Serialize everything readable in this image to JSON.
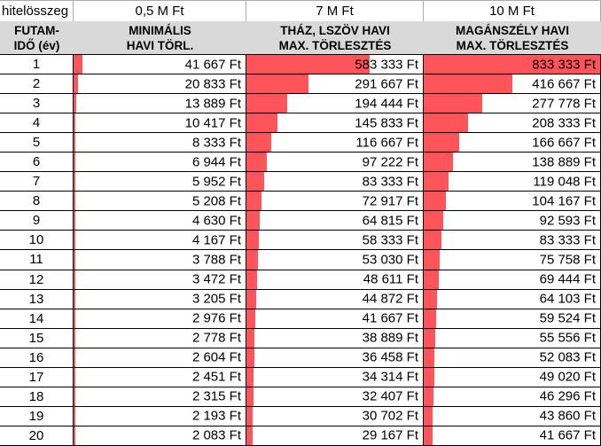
{
  "colors": {
    "bar": "#FF545A",
    "header_bg": "#D9D9D9",
    "grid_dark": "#000000",
    "grid_light": "#ABABAB"
  },
  "title_row": {
    "loan_label": "hitelösszeg",
    "amounts": [
      "0,5 M Ft",
      "7 M Ft",
      "10 M Ft"
    ]
  },
  "header_row": {
    "term": [
      "FUTAM-",
      "IDŐ (év)"
    ],
    "min_payment": [
      "MINIMÁLIS",
      "HAVI TÖRL."
    ],
    "thaz": [
      "THÁZ, LSZÖV HAVI",
      "MAX. TÖRLESZTÉS"
    ],
    "maganszely": [
      "MAGÁNSZÉLY HAVI",
      "MAX. TÖRLESZTÉS"
    ]
  },
  "rows": [
    {
      "year": "1",
      "min": "41 667 Ft",
      "thaz": "583 333 Ft",
      "magan": "833 333 Ft"
    },
    {
      "year": "2",
      "min": "20 833 Ft",
      "thaz": "291 667 Ft",
      "magan": "416 667 Ft"
    },
    {
      "year": "3",
      "min": "13 889 Ft",
      "thaz": "194 444 Ft",
      "magan": "277 778 Ft"
    },
    {
      "year": "4",
      "min": "10 417 Ft",
      "thaz": "145 833 Ft",
      "magan": "208 333 Ft"
    },
    {
      "year": "5",
      "min": "8 333 Ft",
      "thaz": "116 667 Ft",
      "magan": "166 667 Ft"
    },
    {
      "year": "6",
      "min": "6 944 Ft",
      "thaz": "97 222 Ft",
      "magan": "138 889 Ft"
    },
    {
      "year": "7",
      "min": "5 952 Ft",
      "thaz": "83 333 Ft",
      "magan": "119 048 Ft"
    },
    {
      "year": "8",
      "min": "5 208 Ft",
      "thaz": "72 917 Ft",
      "magan": "104 167 Ft"
    },
    {
      "year": "9",
      "min": "4 630 Ft",
      "thaz": "64 815 Ft",
      "magan": "92 593 Ft"
    },
    {
      "year": "10",
      "min": "4 167 Ft",
      "thaz": "58 333 Ft",
      "magan": "83 333 Ft"
    },
    {
      "year": "11",
      "min": "3 788 Ft",
      "thaz": "53 030 Ft",
      "magan": "75 758 Ft"
    },
    {
      "year": "12",
      "min": "3 472 Ft",
      "thaz": "48 611 Ft",
      "magan": "69 444 Ft"
    },
    {
      "year": "13",
      "min": "3 205 Ft",
      "thaz": "44 872 Ft",
      "magan": "64 103 Ft"
    },
    {
      "year": "14",
      "min": "2 976 Ft",
      "thaz": "41 667 Ft",
      "magan": "59 524 Ft"
    },
    {
      "year": "15",
      "min": "2 778 Ft",
      "thaz": "38 889 Ft",
      "magan": "55 556 Ft"
    },
    {
      "year": "16",
      "min": "2 604 Ft",
      "thaz": "36 458 Ft",
      "magan": "52 083 Ft"
    },
    {
      "year": "17",
      "min": "2 451 Ft",
      "thaz": "34 314 Ft",
      "magan": "49 020 Ft"
    },
    {
      "year": "18",
      "min": "2 315 Ft",
      "thaz": "32 407 Ft",
      "magan": "46 296 Ft"
    },
    {
      "year": "19",
      "min": "2 193 Ft",
      "thaz": "30 702 Ft",
      "magan": "43 860 Ft"
    },
    {
      "year": "20",
      "min": "2 083 Ft",
      "thaz": "29 167 Ft",
      "magan": "41 667 Ft"
    }
  ],
  "chart_data": {
    "type": "table",
    "title": "hitelösszeg / havi törlesztés",
    "xlabel": "FUTAM-IDŐ (év)",
    "unit": "Ft",
    "bar_scale_max": 833333,
    "bar_style": "in-cell data bars, left-aligned, scaled to global max",
    "categories": [
      1,
      2,
      3,
      4,
      5,
      6,
      7,
      8,
      9,
      10,
      11,
      12,
      13,
      14,
      15,
      16,
      17,
      18,
      19,
      20
    ],
    "series": [
      {
        "name": "0,5 M Ft — MINIMÁLIS HAVI TÖRL.",
        "values": [
          41667,
          20833,
          13889,
          10417,
          8333,
          6944,
          5952,
          5208,
          4630,
          4167,
          3788,
          3472,
          3205,
          2976,
          2778,
          2604,
          2451,
          2315,
          2193,
          2083
        ]
      },
      {
        "name": "7 M Ft — THÁZ, LSZÖV HAVI MAX. TÖRLESZTÉS",
        "values": [
          583333,
          291667,
          194444,
          145833,
          116667,
          97222,
          83333,
          72917,
          64815,
          58333,
          53030,
          48611,
          44872,
          41667,
          38889,
          36458,
          34314,
          32407,
          30702,
          29167
        ]
      },
      {
        "name": "10 M Ft — MAGÁNSZÉLY HAVI MAX. TÖRLESZTÉS",
        "values": [
          833333,
          416667,
          277778,
          208333,
          166667,
          138889,
          119048,
          104167,
          92593,
          83333,
          75758,
          69444,
          64103,
          59524,
          55556,
          52083,
          49020,
          46296,
          43860,
          41667
        ]
      }
    ]
  }
}
